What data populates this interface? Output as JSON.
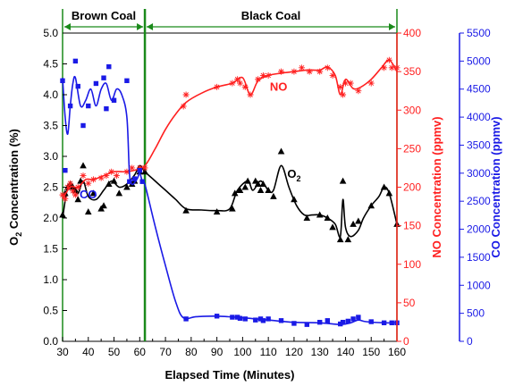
{
  "chart_data": {
    "type": "scatter",
    "xlabel": "Elapsed Time (Minutes)",
    "xlim": [
      30,
      160
    ],
    "xticks": [
      30,
      40,
      50,
      60,
      70,
      80,
      90,
      100,
      110,
      120,
      130,
      140,
      150,
      160
    ],
    "axes": {
      "o2": {
        "ylabel_main": "O",
        "ylabel_sub": "2",
        "ylabel_rest": " Concentration (%)",
        "ylim": [
          0,
          5
        ],
        "ticks": [
          "0.0",
          "0.5",
          "1.0",
          "1.5",
          "2.0",
          "2.5",
          "3.0",
          "3.5",
          "4.0",
          "4.5",
          "5.0"
        ]
      },
      "no": {
        "ylabel": "NO Concentration (ppmv)",
        "ylim": [
          0,
          400
        ],
        "ticks": [
          "0",
          "50",
          "100",
          "150",
          "200",
          "250",
          "300",
          "350",
          "400"
        ]
      },
      "co": {
        "ylabel": "CO Concentration (ppmv)",
        "ylim": [
          0,
          5500
        ],
        "ticks": [
          "0",
          "500",
          "1000",
          "1500",
          "2000",
          "2500",
          "3000",
          "3500",
          "4000",
          "4500",
          "5000",
          "5500"
        ]
      }
    },
    "regions": [
      {
        "label": "Brown Coal",
        "x": [
          30,
          62
        ]
      },
      {
        "label": "Black Coal",
        "x": [
          62,
          160
        ]
      }
    ],
    "annotations": [
      {
        "text": "NO",
        "x": 114,
        "y_no": 325
      },
      {
        "text": "CO",
        "x": 40,
        "y_co": 2550
      },
      {
        "text": "O",
        "sub": "2",
        "x": 120,
        "y_o2": 2.65
      }
    ],
    "colors": {
      "o2": "#000000",
      "no": "#ff2020",
      "co": "#1a1ae6",
      "divider": "#1a8a1a"
    },
    "series": [
      {
        "name": "O2",
        "axis": "o2",
        "marker": "triangle",
        "points": [
          [
            30,
            2.05
          ],
          [
            31,
            2.4
          ],
          [
            32,
            2.5
          ],
          [
            33,
            2.55
          ],
          [
            34,
            2.5
          ],
          [
            35,
            2.45
          ],
          [
            36,
            2.3
          ],
          [
            37,
            2.6
          ],
          [
            38,
            2.85
          ],
          [
            40,
            2.1
          ],
          [
            42,
            2.4
          ],
          [
            45,
            2.15
          ],
          [
            46,
            2.2
          ],
          [
            48,
            2.55
          ],
          [
            50,
            2.6
          ],
          [
            52,
            2.4
          ],
          [
            55,
            2.5
          ],
          [
            57,
            2.55
          ],
          [
            58,
            2.6
          ],
          [
            60,
            2.75
          ],
          [
            62,
            2.75
          ],
          [
            78,
            2.12
          ],
          [
            90,
            2.1
          ],
          [
            96,
            2.15
          ],
          [
            97,
            2.4
          ],
          [
            99,
            2.45
          ],
          [
            101,
            2.5
          ],
          [
            102,
            2.6
          ],
          [
            105,
            2.6
          ],
          [
            106,
            2.55
          ],
          [
            107,
            2.45
          ],
          [
            108,
            2.55
          ],
          [
            110,
            2.45
          ],
          [
            112,
            2.35
          ],
          [
            115,
            3.08
          ],
          [
            120,
            2.3
          ],
          [
            125,
            2.0
          ],
          [
            130,
            2.05
          ],
          [
            133,
            2.0
          ],
          [
            135,
            1.85
          ],
          [
            138,
            1.65
          ],
          [
            139,
            2.6
          ],
          [
            141,
            1.65
          ],
          [
            143,
            1.9
          ],
          [
            145,
            1.95
          ],
          [
            150,
            2.2
          ],
          [
            155,
            2.5
          ],
          [
            157,
            2.4
          ],
          [
            160,
            1.9
          ]
        ],
        "curve": [
          [
            30,
            2.0
          ],
          [
            32,
            2.5
          ],
          [
            34,
            2.5
          ],
          [
            36,
            2.4
          ],
          [
            38,
            2.6
          ],
          [
            40,
            2.35
          ],
          [
            43,
            2.3
          ],
          [
            46,
            2.45
          ],
          [
            49,
            2.6
          ],
          [
            52,
            2.5
          ],
          [
            55,
            2.55
          ],
          [
            58,
            2.7
          ],
          [
            60,
            2.85
          ],
          [
            62,
            2.75
          ],
          [
            66,
            2.6
          ],
          [
            70,
            2.45
          ],
          [
            74,
            2.3
          ],
          [
            78,
            2.15
          ],
          [
            84,
            2.13
          ],
          [
            90,
            2.12
          ],
          [
            95,
            2.15
          ],
          [
            98,
            2.45
          ],
          [
            102,
            2.6
          ],
          [
            104,
            2.45
          ],
          [
            107,
            2.6
          ],
          [
            110,
            2.45
          ],
          [
            112,
            2.45
          ],
          [
            115,
            2.85
          ],
          [
            118,
            2.5
          ],
          [
            121,
            2.2
          ],
          [
            124,
            2.05
          ],
          [
            127,
            2.05
          ],
          [
            130,
            2.05
          ],
          [
            133,
            2.0
          ],
          [
            136,
            1.9
          ],
          [
            138,
            1.7
          ],
          [
            139,
            2.3
          ],
          [
            140,
            1.85
          ],
          [
            142,
            1.7
          ],
          [
            145,
            1.8
          ],
          [
            147,
            2.0
          ],
          [
            150,
            2.2
          ],
          [
            153,
            2.35
          ],
          [
            155,
            2.5
          ],
          [
            157,
            2.4
          ],
          [
            160,
            1.9
          ]
        ]
      },
      {
        "name": "NO",
        "axis": "no",
        "marker": "asterisk",
        "points": [
          [
            30,
            190
          ],
          [
            31,
            185
          ],
          [
            32,
            200
          ],
          [
            33,
            205
          ],
          [
            34,
            195
          ],
          [
            35,
            190
          ],
          [
            36,
            200
          ],
          [
            38,
            215
          ],
          [
            40,
            205
          ],
          [
            42,
            210
          ],
          [
            45,
            212
          ],
          [
            47,
            215
          ],
          [
            49,
            220
          ],
          [
            51,
            215
          ],
          [
            55,
            220
          ],
          [
            57,
            225
          ],
          [
            60,
            225
          ],
          [
            62,
            225
          ],
          [
            77,
            305
          ],
          [
            78,
            320
          ],
          [
            90,
            330
          ],
          [
            96,
            335
          ],
          [
            98,
            340
          ],
          [
            99,
            335
          ],
          [
            101,
            330
          ],
          [
            103,
            320
          ],
          [
            106,
            340
          ],
          [
            108,
            345
          ],
          [
            110,
            345
          ],
          [
            115,
            350
          ],
          [
            120,
            350
          ],
          [
            123,
            355
          ],
          [
            126,
            350
          ],
          [
            130,
            350
          ],
          [
            133,
            355
          ],
          [
            135,
            345
          ],
          [
            138,
            330
          ],
          [
            139,
            320
          ],
          [
            140,
            335
          ],
          [
            142,
            335
          ],
          [
            145,
            325
          ],
          [
            150,
            335
          ],
          [
            155,
            355
          ],
          [
            157,
            365
          ],
          [
            158,
            355
          ],
          [
            160,
            355
          ]
        ],
        "curve": [
          [
            30,
            185
          ],
          [
            33,
            200
          ],
          [
            36,
            200
          ],
          [
            39,
            210
          ],
          [
            42,
            210
          ],
          [
            46,
            215
          ],
          [
            50,
            220
          ],
          [
            54,
            220
          ],
          [
            58,
            222
          ],
          [
            62,
            228
          ],
          [
            66,
            250
          ],
          [
            70,
            275
          ],
          [
            74,
            295
          ],
          [
            78,
            310
          ],
          [
            84,
            322
          ],
          [
            90,
            330
          ],
          [
            96,
            335
          ],
          [
            100,
            342
          ],
          [
            103,
            320
          ],
          [
            106,
            338
          ],
          [
            110,
            345
          ],
          [
            115,
            348
          ],
          [
            120,
            350
          ],
          [
            125,
            352
          ],
          [
            130,
            352
          ],
          [
            133,
            356
          ],
          [
            136,
            345
          ],
          [
            138,
            320
          ],
          [
            140,
            340
          ],
          [
            143,
            328
          ],
          [
            146,
            330
          ],
          [
            150,
            340
          ],
          [
            154,
            355
          ],
          [
            157,
            365
          ],
          [
            160,
            350
          ]
        ]
      },
      {
        "name": "CO",
        "axis": "co",
        "marker": "square",
        "points": [
          [
            30,
            4650
          ],
          [
            31,
            3050
          ],
          [
            33,
            4200
          ],
          [
            35,
            5000
          ],
          [
            36,
            4550
          ],
          [
            38,
            3850
          ],
          [
            40,
            4200
          ],
          [
            43,
            4600
          ],
          [
            46,
            4700
          ],
          [
            47,
            4150
          ],
          [
            48,
            4900
          ],
          [
            50,
            4300
          ],
          [
            55,
            4650
          ],
          [
            56,
            2850
          ],
          [
            58,
            2900
          ],
          [
            60,
            3050
          ],
          [
            61,
            2850
          ],
          [
            78,
            400
          ],
          [
            90,
            450
          ],
          [
            96,
            430
          ],
          [
            98,
            430
          ],
          [
            99,
            410
          ],
          [
            101,
            400
          ],
          [
            105,
            380
          ],
          [
            107,
            400
          ],
          [
            108,
            370
          ],
          [
            110,
            400
          ],
          [
            115,
            370
          ],
          [
            120,
            320
          ],
          [
            125,
            300
          ],
          [
            130,
            340
          ],
          [
            133,
            370
          ],
          [
            138,
            310
          ],
          [
            139,
            340
          ],
          [
            141,
            360
          ],
          [
            143,
            400
          ],
          [
            145,
            430
          ],
          [
            150,
            350
          ],
          [
            155,
            330
          ],
          [
            158,
            330
          ],
          [
            160,
            330
          ]
        ],
        "curve": [
          [
            30,
            4700
          ],
          [
            31,
            4000
          ],
          [
            32,
            3700
          ],
          [
            33,
            4200
          ],
          [
            34,
            4600
          ],
          [
            35,
            4700
          ],
          [
            37,
            4200
          ],
          [
            39,
            4300
          ],
          [
            41,
            4500
          ],
          [
            43,
            4200
          ],
          [
            45,
            4500
          ],
          [
            47,
            4600
          ],
          [
            49,
            4300
          ],
          [
            51,
            4500
          ],
          [
            53,
            4400
          ],
          [
            55,
            4000
          ],
          [
            56,
            3000
          ],
          [
            57,
            2800
          ],
          [
            59,
            2900
          ],
          [
            60,
            3000
          ],
          [
            61,
            2850
          ],
          [
            62,
            2800
          ],
          [
            66,
            2050
          ],
          [
            70,
            1350
          ],
          [
            74,
            700
          ],
          [
            77,
            420
          ],
          [
            82,
            440
          ],
          [
            90,
            450
          ],
          [
            100,
            420
          ],
          [
            110,
            380
          ],
          [
            120,
            340
          ],
          [
            130,
            330
          ],
          [
            138,
            300
          ],
          [
            142,
            330
          ],
          [
            145,
            380
          ],
          [
            148,
            350
          ],
          [
            155,
            330
          ],
          [
            160,
            330
          ]
        ]
      }
    ]
  }
}
